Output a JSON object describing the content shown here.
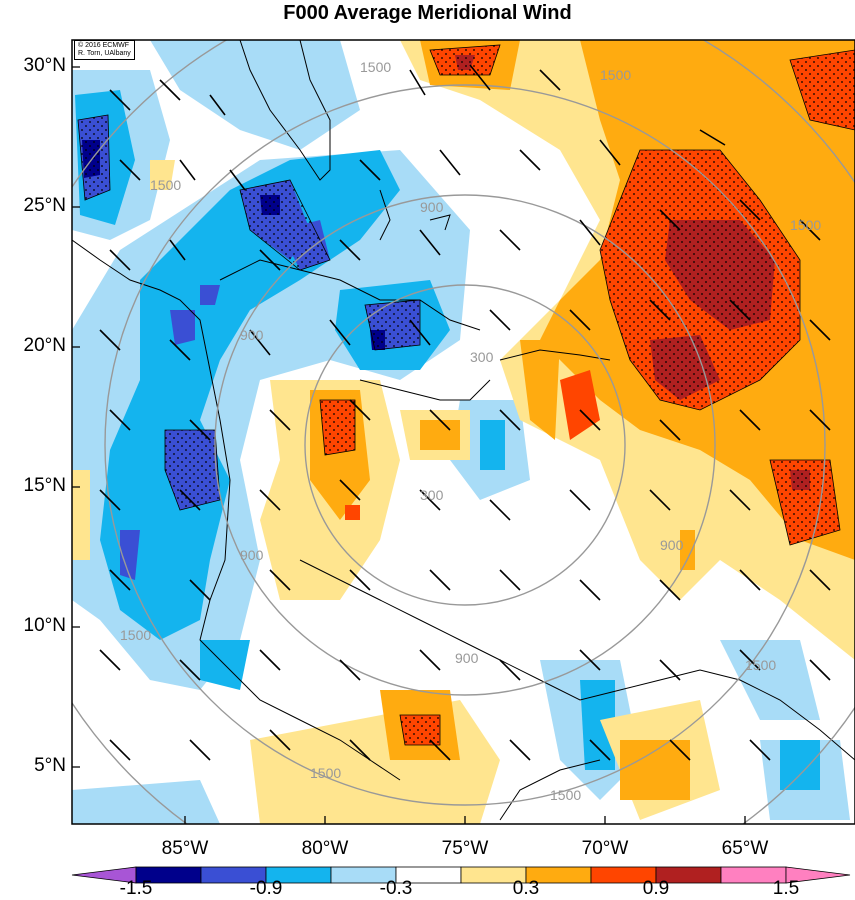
{
  "title": "F000 Average Meridional Wind",
  "credit": {
    "line1": "© 2016 ECMWF",
    "line2": "R. Torn, UAlbany"
  },
  "lat_labels": [
    "30°N",
    "25°N",
    "20°N",
    "15°N",
    "10°N",
    "5°N"
  ],
  "lon_labels": [
    "85°W",
    "80°W",
    "75°W",
    "70°W",
    "65°W"
  ],
  "colorbar": {
    "tick_labels": [
      "-1.5",
      "-0.9",
      "-0.3",
      "0.3",
      "0.9",
      "1.5"
    ],
    "colors": [
      "#a855d6",
      "#00008b",
      "#3a4fd4",
      "#14b4ee",
      "#a8dcf7",
      "#ffffff",
      "#ffe58f",
      "#ffab10",
      "#ff4500",
      "#b02020",
      "#ff80c0"
    ]
  },
  "contours": {
    "color": "#999999",
    "labels": [
      "300",
      "900",
      "1500"
    ]
  },
  "map": {
    "extent": {
      "lon": [
        -90,
        -62
      ],
      "lat": [
        3,
        31
      ]
    }
  }
}
